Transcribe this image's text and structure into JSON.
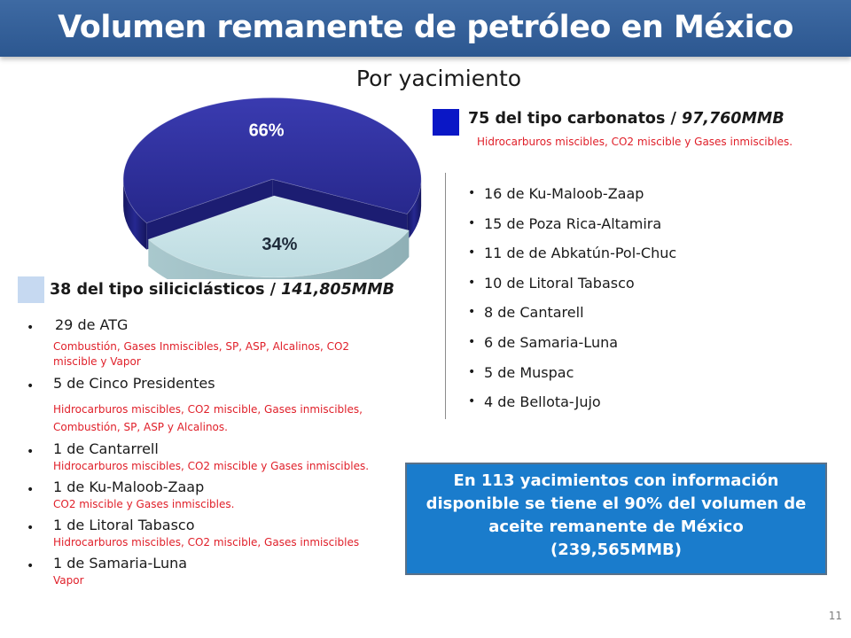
{
  "slide": {
    "title": "Volumen remanente de petróleo en México",
    "subtitle": "Por yacimiento",
    "page_number": "11"
  },
  "chart_data": {
    "type": "pie",
    "title": "",
    "slices": [
      {
        "label": "66%",
        "value": 66,
        "color": "#2e2f9b"
      },
      {
        "label": "34%",
        "value": 34,
        "color": "#c6e2e6"
      }
    ]
  },
  "carbonatos": {
    "count_text": "75 del tipo carbonatos / ",
    "volume": "97,760MMB",
    "swatch_color": "#0a17c6",
    "methods": "Hidrocarburos miscibles, CO2 miscible y Gases inmiscibles.",
    "fields": [
      "16 de Ku-Maloob-Zaap",
      "15 de Poza Rica-Altamira",
      "11 de de Abkatún-Pol-Chuc",
      "10  de Litoral Tabasco",
      "8 de Cantarell",
      "6 de Samaria-Luna",
      "5 de Muspac",
      "4 de Bellota-Jujo"
    ]
  },
  "siliciclasticos": {
    "count_text": "38 del tipo siliciclásticos / ",
    "volume": "141,805MMB",
    "swatch_color": "#c6d9f1",
    "fields": [
      {
        "name": "29 de ATG",
        "methods": "Combustión, Gases Inmiscibles, SP, ASP, Alcalinos, CO2 miscible y Vapor"
      },
      {
        "name": "5 de Cinco Presidentes",
        "methods": "Hidrocarburos miscibles, CO2 miscible, Gases inmiscibles, Combustión, SP, ASP y Alcalinos."
      },
      {
        "name": "1 de Cantarrell",
        "methods": "Hidrocarburos miscibles, CO2 miscible y Gases inmiscibles."
      },
      {
        "name": "1 de Ku-Maloob-Zaap",
        "methods": "CO2 miscible y Gases inmiscibles."
      },
      {
        "name": "1 de Litoral Tabasco",
        "methods": "Hidrocarburos miscibles, CO2 miscible, Gases inmiscibles"
      },
      {
        "name": "1 de Samaria-Luna",
        "methods": "Vapor"
      }
    ]
  },
  "summary_box": {
    "line1": "En 113 yacimientos con información",
    "line2": "disponible se tiene el 90% del volumen de",
    "line3": "aceite remanente de México",
    "line4": "(239,565MMB)"
  }
}
